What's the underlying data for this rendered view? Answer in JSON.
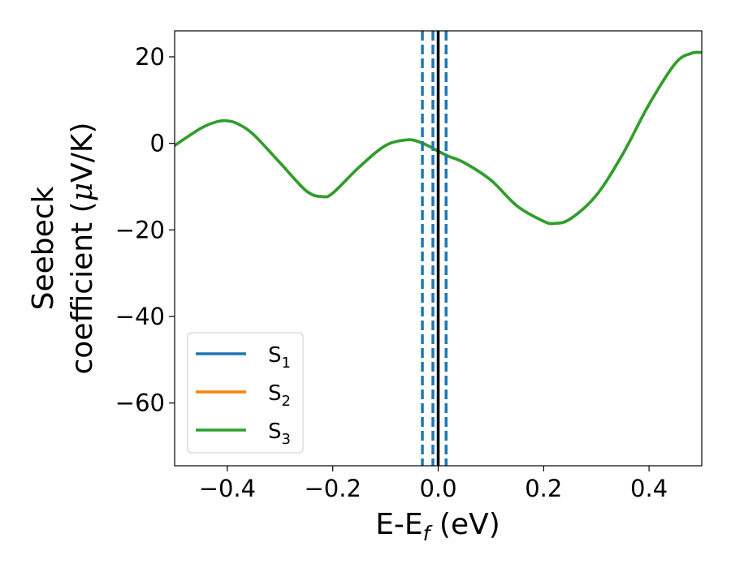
{
  "chart_data": {
    "type": "line",
    "title": "",
    "xlabel": {
      "base": "E-E",
      "sub": "f",
      "suffix": " (eV)"
    },
    "ylabel": {
      "line1": "Seebeck",
      "line2_prefix": "coefficient  (",
      "mu": "μ",
      "line2_suffix": "V/K)"
    },
    "xlim": [
      -0.5,
      0.5
    ],
    "ylim": [
      -74.5,
      26
    ],
    "xticks": [
      -0.4,
      -0.2,
      0.0,
      0.2,
      0.4
    ],
    "xtick_labels": [
      "−0.4",
      "−0.2",
      "0.0",
      "0.2",
      "0.4"
    ],
    "yticks": [
      20,
      0,
      -20,
      -40,
      -60
    ],
    "ytick_labels": [
      "20",
      "0",
      "−20",
      "−40",
      "−60"
    ],
    "grid": false,
    "legend_position": "lower-left",
    "x": [
      -0.5,
      -0.45,
      -0.42,
      -0.4,
      -0.38,
      -0.35,
      -0.3,
      -0.25,
      -0.22,
      -0.2,
      -0.15,
      -0.1,
      -0.06,
      -0.04,
      -0.02,
      0.0,
      0.02,
      0.05,
      0.1,
      0.15,
      0.2,
      0.22,
      0.25,
      0.3,
      0.35,
      0.4,
      0.45,
      0.48,
      0.5
    ],
    "series": [
      {
        "name_base": "S",
        "name_sub": "1",
        "color": "#1f77b4",
        "y": [
          -0.5,
          3.5,
          5.0,
          5.2,
          4.5,
          2.0,
          -4.5,
          -11.0,
          -12.3,
          -11.5,
          -5.5,
          -0.5,
          0.8,
          0.5,
          -0.5,
          -1.8,
          -3.0,
          -4.5,
          -8.5,
          -14.5,
          -18.0,
          -18.5,
          -17.5,
          -12.0,
          -2.5,
          9.0,
          18.5,
          20.8,
          21.0
        ]
      },
      {
        "name_base": "S",
        "name_sub": "2",
        "color": "#ff7f0e",
        "y": [
          -0.5,
          3.5,
          5.0,
          5.2,
          4.5,
          2.0,
          -4.5,
          -11.0,
          -12.3,
          -11.5,
          -5.5,
          -0.5,
          0.8,
          0.5,
          -0.5,
          -1.8,
          -3.0,
          -4.5,
          -8.5,
          -14.5,
          -18.0,
          -18.5,
          -17.5,
          -12.0,
          -2.5,
          9.0,
          18.5,
          20.8,
          21.0
        ]
      },
      {
        "name_base": "S",
        "name_sub": "3",
        "color": "#2ca02c",
        "y": [
          -0.5,
          3.5,
          5.0,
          5.2,
          4.5,
          2.0,
          -4.5,
          -11.0,
          -12.3,
          -11.5,
          -5.5,
          -0.5,
          0.8,
          0.5,
          -0.5,
          -1.8,
          -3.0,
          -4.5,
          -8.5,
          -14.5,
          -18.0,
          -18.5,
          -17.5,
          -12.0,
          -2.5,
          9.0,
          18.5,
          20.8,
          21.0
        ]
      }
    ],
    "vertical_lines": [
      {
        "x": 0.0,
        "color": "#000000",
        "style": "solid"
      },
      {
        "x": -0.03,
        "color": "#1f77b4",
        "style": "dashed"
      },
      {
        "x": -0.01,
        "color": "#1f77b4",
        "style": "dashed"
      },
      {
        "x": 0.015,
        "color": "#1f77b4",
        "style": "dashed"
      }
    ]
  }
}
